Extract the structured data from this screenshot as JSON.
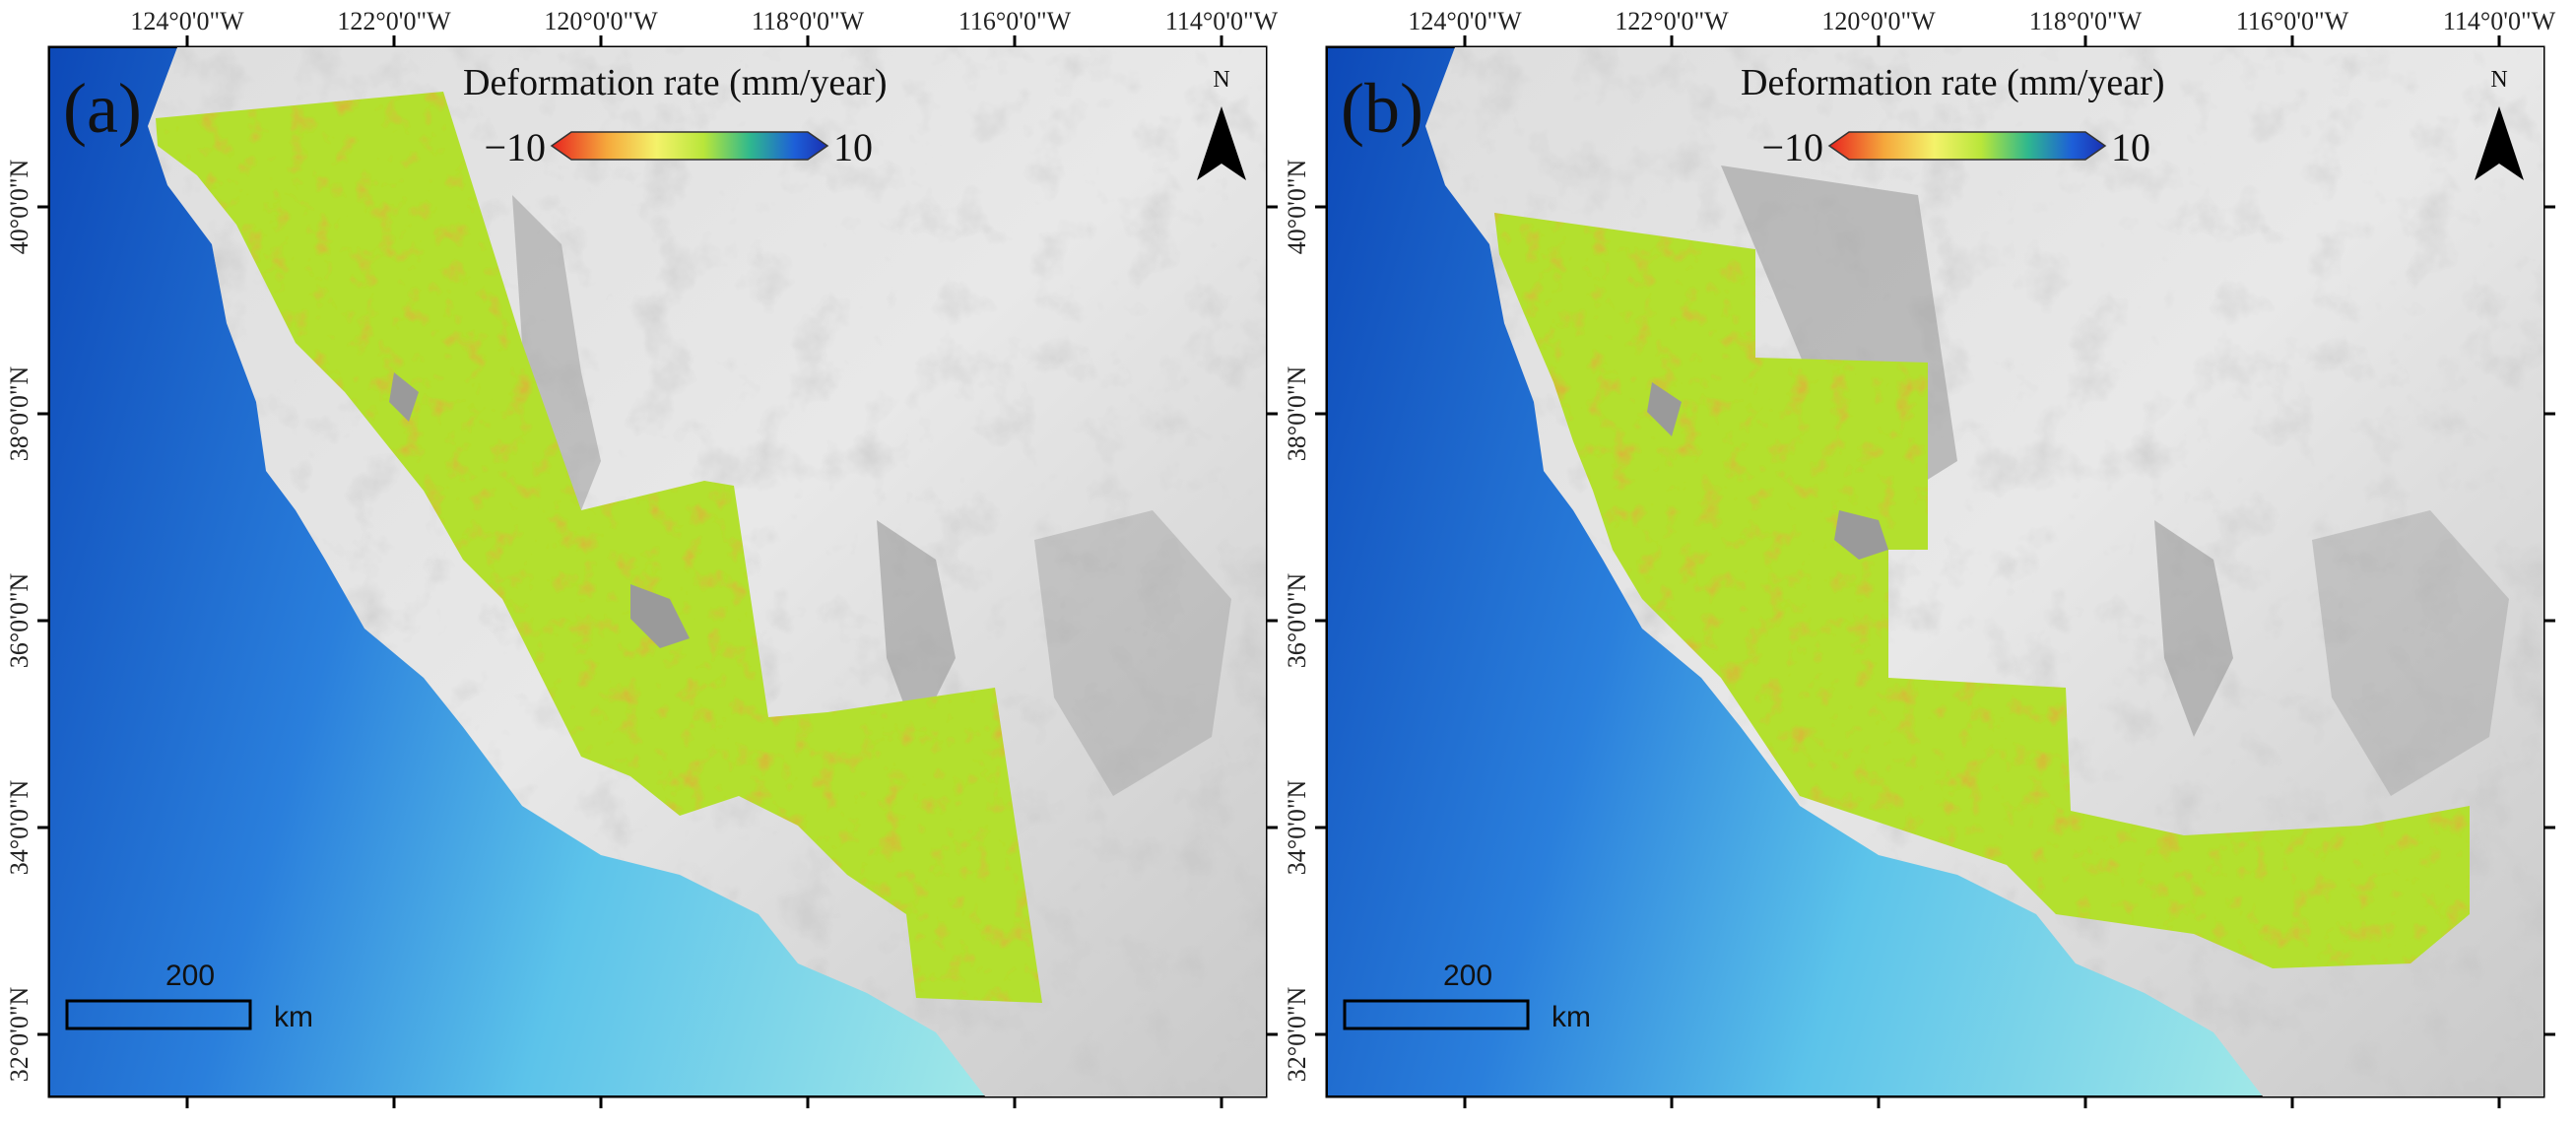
{
  "panels": [
    {
      "id": "a",
      "label": "(a)",
      "legend": {
        "title": "Deformation rate (mm/year)",
        "min_label": "−10",
        "max_label": "10"
      },
      "north_label": "N",
      "scale_bar": {
        "value": "200",
        "unit": "km"
      }
    },
    {
      "id": "b",
      "label": "(b)",
      "legend": {
        "title": "Deformation rate (mm/year)",
        "min_label": "−10",
        "max_label": "10"
      },
      "north_label": "N",
      "scale_bar": {
        "value": "200",
        "unit": "km"
      }
    }
  ],
  "lon_labels": [
    "124°0'0\"W",
    "122°0'0\"W",
    "120°0'0\"W",
    "118°0'0\"W",
    "116°0'0\"W",
    "114°0'0\"W"
  ],
  "lat_labels": [
    "40°0'0\"N",
    "38°0'0\"N",
    "36°0'0\"N",
    "34°0'0\"N",
    "32°0'0\"N"
  ],
  "colormap": [
    "#e8231f",
    "#f5a83c",
    "#f4f26a",
    "#b9e63a",
    "#2fb88e",
    "#1d5fd8",
    "#1a2fb0"
  ],
  "colors": {
    "ocean_deep": "#1e5fc4",
    "ocean_shelf": "#7ad6e4",
    "land": "#d9d9d9",
    "deformation_base": "#b5e22f"
  }
}
